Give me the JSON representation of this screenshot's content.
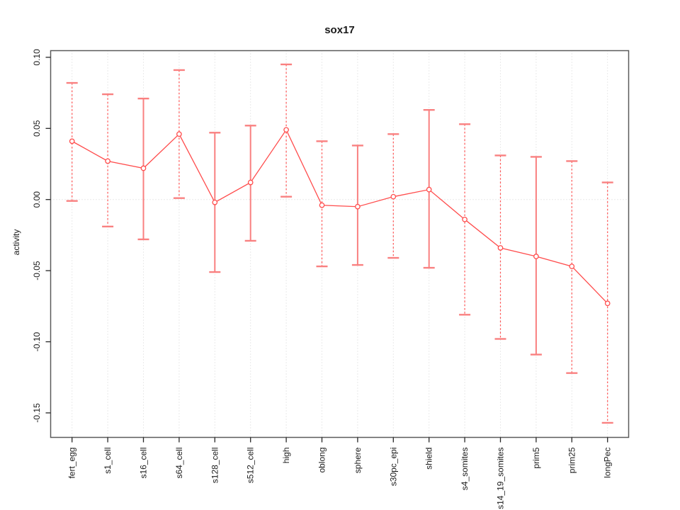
{
  "chart_data": {
    "type": "line",
    "title": "sox17",
    "ylabel": "activity",
    "categories": [
      "fert_egg",
      "s1_cell",
      "s16_cell",
      "s64_cell",
      "s128_cell",
      "s512_cell",
      "high",
      "oblong",
      "sphere",
      "s30pc_epi",
      "shield",
      "s4_somites",
      "s14_19_somites",
      "prim5",
      "prim25",
      "longPec"
    ],
    "series": [
      {
        "name": "sox17",
        "values": [
          0.041,
          0.027,
          0.022,
          0.046,
          -0.002,
          0.012,
          0.049,
          -0.004,
          -0.005,
          0.002,
          0.007,
          -0.014,
          -0.034,
          -0.04,
          -0.047,
          -0.073
        ],
        "error_lower": [
          -0.001,
          -0.019,
          -0.028,
          0.001,
          -0.051,
          -0.029,
          0.002,
          -0.047,
          -0.046,
          -0.041,
          -0.048,
          -0.081,
          -0.098,
          -0.109,
          -0.122,
          -0.157
        ],
        "error_upper": [
          0.082,
          0.074,
          0.071,
          0.091,
          0.047,
          0.052,
          0.095,
          0.041,
          0.038,
          0.046,
          0.063,
          0.053,
          0.031,
          0.03,
          0.027,
          0.012
        ],
        "stem_styles": [
          "dashed",
          "dashed",
          "solid",
          "dashed",
          "solid",
          "solid",
          "dashed",
          "dashed",
          "solid",
          "dashed",
          "solid",
          "dashed",
          "dashed",
          "solid",
          "dashed",
          "dashed"
        ]
      }
    ],
    "marker": "open-circle",
    "yticks": {
      "values": [
        0.1,
        0.05,
        0.0,
        -0.05,
        -0.1,
        -0.15
      ],
      "labels": [
        "0.10",
        "0.05",
        "0.00",
        "-0.05",
        "-0.10",
        "-0.15"
      ]
    },
    "ylim": [
      -0.167,
      0.105
    ],
    "grid": {
      "vertical_at_categories": true,
      "horizontal_at_zero": true,
      "style": "dotted"
    },
    "legend_position": "none",
    "colors": {
      "series_line": "#ff4d4d",
      "error_stem": "#ff5555",
      "error_cap": "#f98080",
      "grid": "#d5d5d5",
      "plot_border": "#5a5a5a",
      "tick_mark": "#262626",
      "text": "#1a1a1a"
    }
  }
}
